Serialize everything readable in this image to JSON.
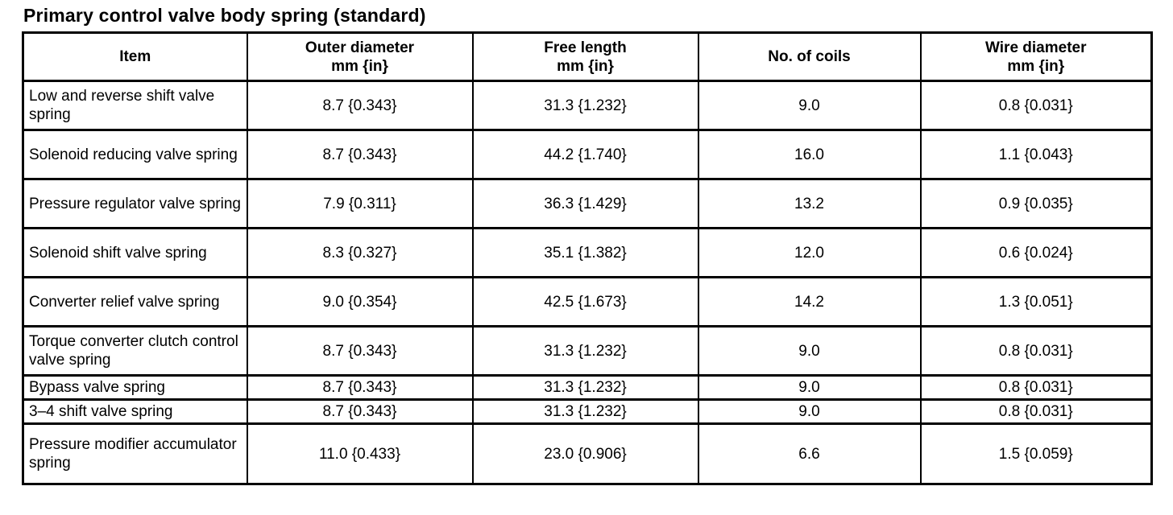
{
  "title": "Primary control valve body spring (standard)",
  "table": {
    "columns": [
      {
        "label": "Item"
      },
      {
        "label": "Outer diameter",
        "unit": "mm {in}"
      },
      {
        "label": "Free length",
        "unit": "mm {in}"
      },
      {
        "label": "No. of coils"
      },
      {
        "label": "Wire diameter",
        "unit": "mm {in}"
      }
    ],
    "rows": [
      {
        "item": "Low and reverse shift valve spring",
        "outer_diameter": "8.7 {0.343}",
        "free_length": "31.3 {1.232}",
        "no_of_coils": "9.0",
        "wire_diameter": "0.8 {0.031}"
      },
      {
        "item": "Solenoid reducing valve spring",
        "outer_diameter": "8.7 {0.343}",
        "free_length": "44.2 {1.740}",
        "no_of_coils": "16.0",
        "wire_diameter": "1.1 {0.043}"
      },
      {
        "item": "Pressure regulator valve spring",
        "outer_diameter": "7.9 {0.311}",
        "free_length": "36.3 {1.429}",
        "no_of_coils": "13.2",
        "wire_diameter": "0.9 {0.035}"
      },
      {
        "item": "Solenoid shift valve spring",
        "outer_diameter": "8.3 {0.327}",
        "free_length": "35.1 {1.382}",
        "no_of_coils": "12.0",
        "wire_diameter": "0.6 {0.024}"
      },
      {
        "item": "Converter relief valve spring",
        "outer_diameter": "9.0 {0.354}",
        "free_length": "42.5 {1.673}",
        "no_of_coils": "14.2",
        "wire_diameter": "1.3 {0.051}"
      },
      {
        "item": "Torque converter clutch control valve spring",
        "outer_diameter": "8.7 {0.343}",
        "free_length": "31.3 {1.232}",
        "no_of_coils": "9.0",
        "wire_diameter": "0.8 {0.031}"
      },
      {
        "item": "Bypass valve spring",
        "outer_diameter": "8.7 {0.343}",
        "free_length": "31.3 {1.232}",
        "no_of_coils": "9.0",
        "wire_diameter": "0.8 {0.031}"
      },
      {
        "item": "3–4 shift valve spring",
        "outer_diameter": "8.7 {0.343}",
        "free_length": "31.3 {1.232}",
        "no_of_coils": "9.0",
        "wire_diameter": "0.8 {0.031}"
      },
      {
        "item": "Pressure modifier accumulator spring",
        "outer_diameter": "11.0 {0.433}",
        "free_length": "23.0 {0.906}",
        "no_of_coils": "6.6",
        "wire_diameter": "1.5 {0.059}"
      }
    ]
  },
  "colors": {
    "text": "#000000",
    "background": "#ffffff",
    "border": "#000000"
  }
}
